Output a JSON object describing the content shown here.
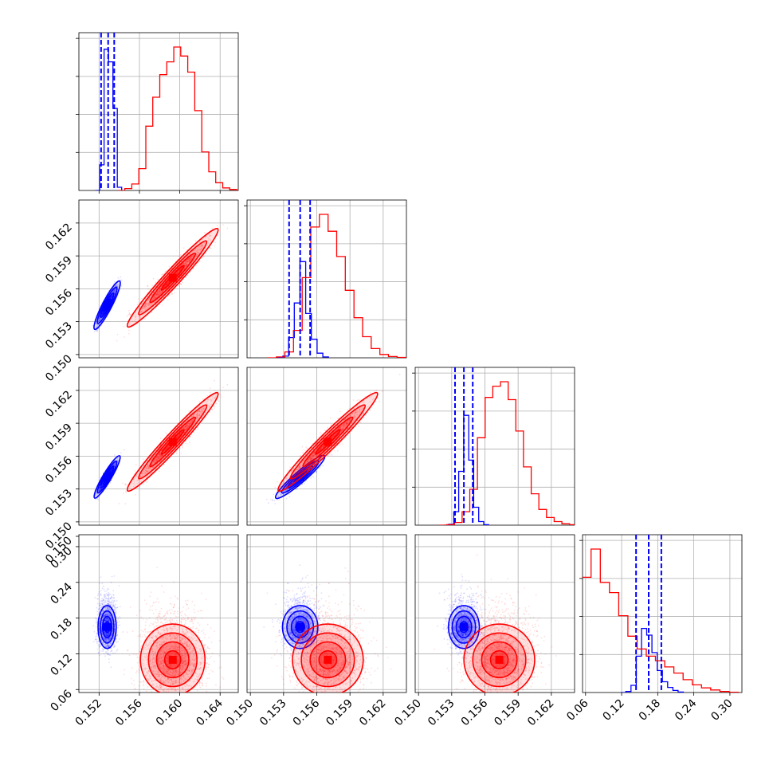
{
  "colors": {
    "blue": "#0000ff",
    "red": "#ff0000",
    "grid": "#b0b0b0"
  },
  "chart_data": {
    "type": "corner",
    "title": "",
    "grid": true,
    "x_ticks": {
      "0": [
        "0.152",
        "0.156",
        "0.160",
        "0.164"
      ],
      "1": [
        "0.150",
        "0.153",
        "0.156",
        "0.159",
        "0.162"
      ],
      "2": [
        "0.150",
        "0.153",
        "0.156",
        "0.159",
        "0.162"
      ],
      "3": [
        "0.06",
        "0.12",
        "0.18",
        "0.24",
        "0.30"
      ]
    },
    "y_ticks": {
      "1": [
        "0.150",
        "0.153",
        "0.156",
        "0.159",
        "0.162"
      ],
      "2": [
        "0.150",
        "0.153",
        "0.156",
        "0.159",
        "0.162"
      ],
      "3": [
        "0.150",
        "0.06",
        "0.12",
        "0.18",
        "0.24",
        "0.30"
      ]
    },
    "ranges": [
      [
        0.15,
        0.1658
      ],
      [
        0.1497,
        0.1641
      ],
      [
        0.1497,
        0.1641
      ],
      [
        0.055,
        0.32
      ]
    ],
    "series": [
      {
        "name": "",
        "color": "blue",
        "mean": [
          0.1528,
          0.1545,
          0.1541,
          0.165
        ],
        "sd": [
          0.00045,
          0.0008,
          0.0007,
          0.018
        ],
        "corr": {
          "0-1": 0.9,
          "0-2": 0.9,
          "0-3": 0.0,
          "1-2": 0.9,
          "1-3": 0.0,
          "2-3": 0.0
        },
        "quantiles": [
          [
            0.1522,
            0.1529,
            0.1535
          ],
          [
            0.1535,
            0.1545,
            0.1554
          ],
          [
            0.1533,
            0.1541,
            0.1549
          ],
          [
            0.144,
            0.165,
            0.186
          ]
        ],
        "histograms": [
          [
            0,
            1590,
            8780,
            8000,
            5100,
            200
          ],
          [
            0,
            80,
            960,
            2600,
            4560,
            2100,
            880,
            220,
            40
          ],
          [
            0,
            40,
            600,
            2400,
            4900,
            2900,
            800,
            160,
            20
          ],
          [
            0,
            40,
            280,
            1420,
            2500,
            2240,
            1560,
            860,
            420,
            200,
            80,
            20
          ]
        ]
      },
      {
        "name": "",
        "color": "red",
        "mean": [
          0.1593,
          0.157,
          0.1573,
          0.11
        ],
        "sd": [
          0.0016,
          0.0016,
          0.0016,
          0.03
        ],
        "corr": {
          "0-1": 0.95,
          "0-2": 0.95,
          "0-3": 0.0,
          "1-2": 0.95,
          "1-3": 0.0,
          "2-3": 0.0
        },
        "histograms": [
          [
            0,
            120,
            400,
            1360,
            4000,
            5800,
            7200,
            8000,
            8920,
            8360,
            7360,
            4960,
            2400,
            1160,
            480,
            160,
            60,
            20
          ],
          [
            0,
            40,
            280,
            1300,
            3800,
            6200,
            6800,
            6000,
            4800,
            3200,
            1900,
            1000,
            440,
            160,
            60,
            20
          ],
          [
            0,
            20,
            120,
            600,
            1600,
            3900,
            5700,
            6200,
            6400,
            5600,
            4200,
            2600,
            1400,
            700,
            340,
            160,
            60,
            20
          ],
          [
            0,
            520,
            2260,
            4500,
            5600,
            4300,
            3900,
            3000,
            2200,
            1700,
            1420,
            1240,
            1000,
            760,
            500,
            300,
            180,
            100,
            40,
            10
          ]
        ]
      }
    ]
  }
}
